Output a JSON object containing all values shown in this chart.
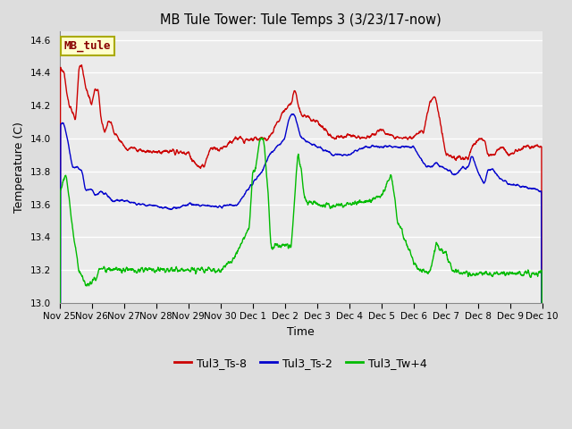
{
  "title": "MB Tule Tower: Tule Temps 3 (3/23/17-now)",
  "xlabel": "Time",
  "ylabel": "Temperature (C)",
  "ylim": [
    13.0,
    14.65
  ],
  "yticks": [
    13.0,
    13.2,
    13.4,
    13.6,
    13.8,
    14.0,
    14.2,
    14.4,
    14.6
  ],
  "background_color": "#dddddd",
  "plot_bg_color": "#ebebeb",
  "series": {
    "Tul3_Ts-8": {
      "color": "#cc0000",
      "linewidth": 1.0
    },
    "Tul3_Ts-2": {
      "color": "#0000cc",
      "linewidth": 1.0
    },
    "Tul3_Tw+4": {
      "color": "#00bb00",
      "linewidth": 1.0
    }
  },
  "legend_box": {
    "label": "MB_tule",
    "facecolor": "#ffffcc",
    "edgecolor": "#aaaa00",
    "text_color": "#880000"
  },
  "xtick_labels": [
    "Nov 25",
    "Nov 26",
    "Nov 27",
    "Nov 28",
    "Nov 29",
    "Nov 30",
    "Dec 1",
    "Dec 2",
    "Dec 3",
    "Dec 4",
    "Dec 5",
    "Dec 6",
    "Dec 7",
    "Dec 8",
    "Dec 9",
    "Dec 10"
  ],
  "num_points": 2000
}
